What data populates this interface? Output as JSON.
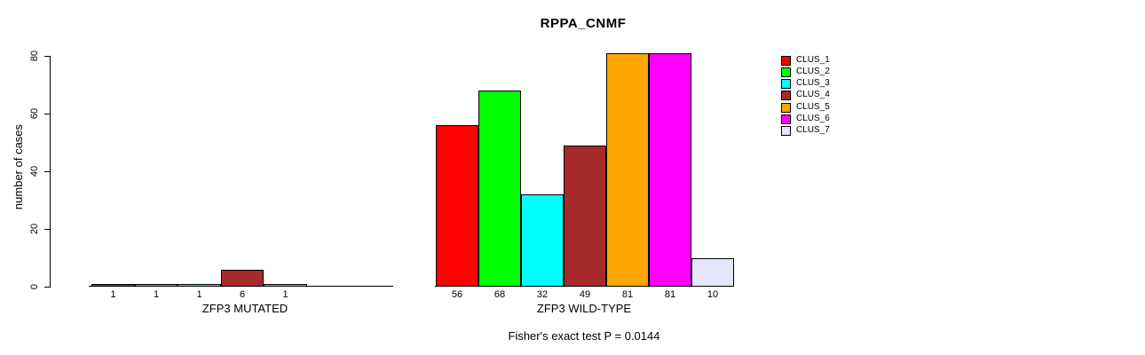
{
  "chart_data": {
    "type": "bar",
    "title": "RPPA_CNMF",
    "ylabel": "number of cases",
    "xlabel": "",
    "ylim": [
      0,
      80
    ],
    "yticks": [
      0,
      20,
      40,
      60,
      80
    ],
    "grid": false,
    "legend_position": "right",
    "legend": [
      "CLUS_1",
      "CLUS_2",
      "CLUS_3",
      "CLUS_4",
      "CLUS_5",
      "CLUS_6",
      "CLUS_7"
    ],
    "colors": [
      "#FF0000",
      "#00FF00",
      "#00FFFF",
      "#A52A2A",
      "#FFA500",
      "#FF00FF",
      "#E6E6FA"
    ],
    "groups": [
      {
        "label": "ZFP3 MUTATED",
        "values": [
          1,
          1,
          1,
          6,
          1,
          0,
          0
        ]
      },
      {
        "label": "ZFP3 WILD-TYPE",
        "values": [
          56,
          68,
          32,
          49,
          81,
          81,
          10
        ]
      }
    ],
    "bar_value_labels": {
      "ZFP3 MUTATED": [
        "1",
        "1",
        "1",
        "6",
        "1",
        "",
        ""
      ],
      "ZFP3 WILD-TYPE": [
        "56",
        "68",
        "32",
        "49",
        "81",
        "81",
        "10"
      ]
    },
    "footnote": "Fisher's exact test P = 0.0144"
  }
}
